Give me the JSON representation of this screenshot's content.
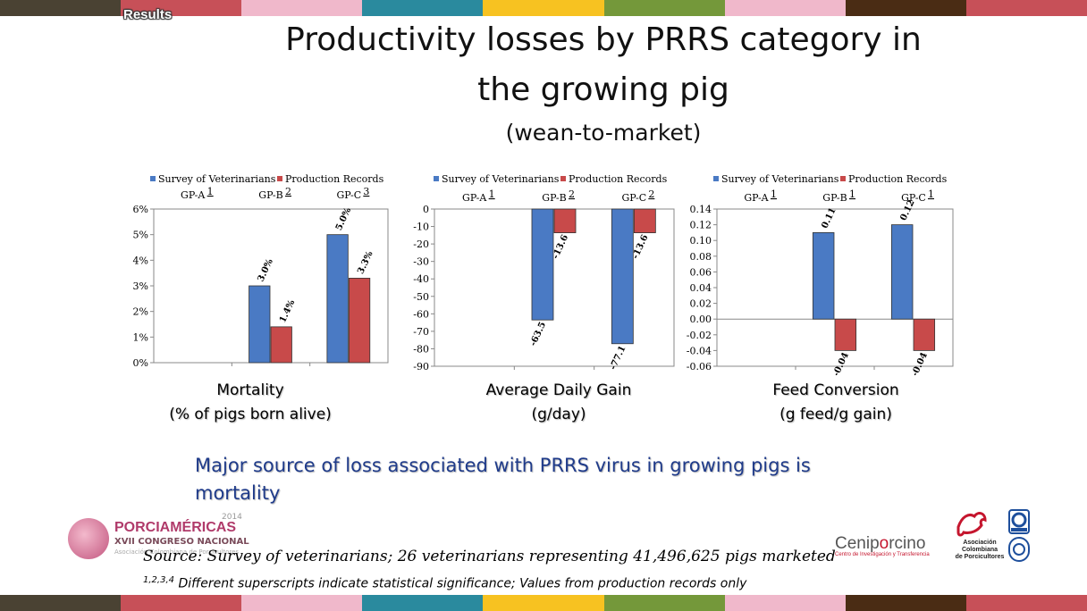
{
  "colors": {
    "strip": [
      "#4a4233",
      "#c75058",
      "#f0b8cb",
      "#2a8a9e",
      "#f7c221",
      "#74983a",
      "#f0b8cb",
      "#4a2c14",
      "#c75058"
    ],
    "survey": "#4a7ac4",
    "records": "#c84a4a",
    "message": "#1f3b8a"
  },
  "header": {
    "section": "Results",
    "title_line1": "Productivity losses by PRRS category in",
    "title_line2": "the growing pig",
    "subtitle": "(wean-to-market)"
  },
  "chart_data": [
    {
      "type": "bar",
      "legend": [
        "Survey of Veterinarians",
        "Production Records"
      ],
      "legend_position": "top",
      "categories": [
        "GP-A",
        "GP-B",
        "GP-C"
      ],
      "category_superscripts": [
        "1",
        "2",
        "3"
      ],
      "series": [
        {
          "name": "Survey of Veterinarians",
          "values": [
            null,
            0.03,
            0.05
          ],
          "labels": [
            "",
            "3.0%",
            "5.0%"
          ]
        },
        {
          "name": "Production Records",
          "values": [
            null,
            0.014,
            0.033
          ],
          "labels": [
            "",
            "1.4%",
            "3.3%"
          ]
        }
      ],
      "ylim": [
        0,
        0.06
      ],
      "yticks": [
        "0%",
        "1%",
        "2%",
        "3%",
        "4%",
        "5%",
        "6%"
      ],
      "grid": false,
      "caption_line1": "Mortality",
      "caption_line2": "(% of pigs born alive)"
    },
    {
      "type": "bar",
      "legend": [
        "Survey of Veterinarians",
        "Production Records"
      ],
      "legend_position": "top",
      "categories": [
        "GP-A",
        "GP-B",
        "GP-C"
      ],
      "category_superscripts": [
        "1",
        "2",
        "2"
      ],
      "series": [
        {
          "name": "Survey of Veterinarians",
          "values": [
            null,
            -63.5,
            -77.1
          ],
          "labels": [
            "",
            "-63.5",
            "-77.1"
          ]
        },
        {
          "name": "Production Records",
          "values": [
            null,
            -13.6,
            -13.6
          ],
          "labels": [
            "",
            "-13.6",
            "-13.6"
          ]
        }
      ],
      "ylim": [
        -90,
        0
      ],
      "yticks": [
        "0",
        "-10",
        "-20",
        "-30",
        "-40",
        "-50",
        "-60",
        "-70",
        "-80",
        "-90"
      ],
      "grid": false,
      "caption_line1": "Average Daily Gain",
      "caption_line2": "(g/day)"
    },
    {
      "type": "bar",
      "legend": [
        "Survey of Veterinarians",
        "Production Records"
      ],
      "legend_position": "top",
      "categories": [
        "GP-A",
        "GP-B",
        "GP-C"
      ],
      "category_superscripts": [
        "1",
        "1",
        "1"
      ],
      "series": [
        {
          "name": "Survey of Veterinarians",
          "values": [
            null,
            0.11,
            0.12
          ],
          "labels": [
            "",
            "0.11",
            "0.12"
          ]
        },
        {
          "name": "Production Records",
          "values": [
            null,
            -0.04,
            -0.04
          ],
          "labels": [
            "",
            "-0.04",
            "-0.04"
          ]
        }
      ],
      "ylim": [
        -0.06,
        0.14
      ],
      "yticks": [
        "0.14",
        "0.12",
        "0.10",
        "0.08",
        "0.06",
        "0.04",
        "0.02",
        "0.00",
        "-0.02",
        "-0.04",
        "-0.06"
      ],
      "grid": false,
      "caption_line1": "Feed Conversion",
      "caption_line2": "(g feed/g gain)"
    }
  ],
  "message": {
    "line1": "Major source of loss associated with PRRS virus in growing pigs is",
    "line2": "mortality"
  },
  "footer": {
    "source": "Source: Survey of veterinarians; 26 veterinarians representing 41,496,625 pigs marketed",
    "footnote_sup": "1,2,3,4",
    "footnote_text": " Different superscripts indicate statistical significance; Values from production records only"
  },
  "logos": {
    "left_brand": "PORCIAMÉRICAS",
    "left_year": "2014",
    "left_sub": "XVII CONGRESO NACIONAL",
    "left_sub2": "Asociación Colombiana de Porcicultores",
    "mid_brand_a": "Cenip",
    "mid_brand_o": "o",
    "mid_brand_b": "rcino",
    "mid_tag": "Centro de Investigación y Transferencia",
    "right_l1": "Asociación",
    "right_l2": "Colombiana",
    "right_l3": "de Porcicultores",
    "right_badge": "ISO 9001"
  }
}
